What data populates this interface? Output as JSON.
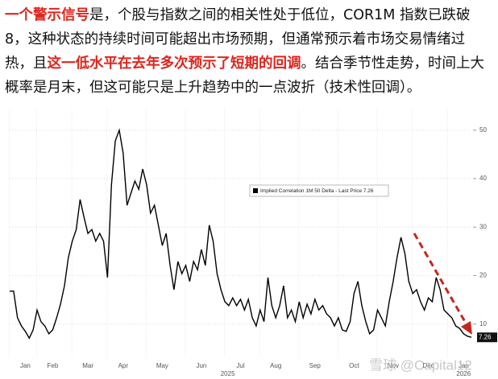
{
  "paragraph": [
    {
      "text": "一个警示信号",
      "red": true
    },
    {
      "text": "是，个股与指数之间的相关性处于低位，COR1M 指数已跌破 8，这种状态的持续时间可能超出市场预期，但通常预示着市场交易情绪过热，且",
      "red": false
    },
    {
      "text": "这一低水平在去年多次预示了短期的回调",
      "red": true
    },
    {
      "text": "。结合季节性走势，时间上大概率是月末，但这可能只是上升趋势中的一点波折（技术性回调）。",
      "red": false
    }
  ],
  "chart_data": {
    "type": "line",
    "categories": [
      null,
      null,
      null,
      null,
      "Jan",
      null,
      null,
      null,
      null,
      null,
      null,
      "Feb",
      null,
      null,
      null,
      null,
      null,
      null,
      null,
      null,
      "Mar",
      null,
      null,
      null,
      null,
      null,
      null,
      null,
      null,
      "Apr",
      null,
      null,
      null,
      null,
      null,
      null,
      null,
      null,
      null,
      "May",
      null,
      null,
      null,
      null,
      null,
      null,
      null,
      null,
      null,
      "Jun",
      null,
      null,
      null,
      null,
      null,
      null,
      null,
      null,
      null,
      "Jul",
      null,
      null,
      null,
      null,
      null,
      null,
      null,
      null,
      "Aug",
      null,
      null,
      null,
      null,
      null,
      null,
      null,
      null,
      null,
      "Sep",
      null,
      null,
      null,
      null,
      null,
      null,
      null,
      null,
      null,
      "Oct",
      null,
      null,
      null,
      null,
      null,
      null,
      null,
      null,
      null,
      "Nov",
      null,
      null,
      null,
      null,
      null,
      null,
      null,
      null,
      "Dec",
      null,
      null,
      null,
      null,
      null,
      null,
      null,
      null,
      "Jan",
      null,
      null
    ],
    "x_groups": [
      "2025",
      "2026"
    ],
    "series": [
      {
        "name": "Implied Correlation 1M 50 Delta - Last Price 7.26",
        "color": "#000000",
        "values": [
          16.8,
          16.8,
          11.3,
          9.6,
          8.5,
          7.1,
          8.8,
          12.9,
          10.5,
          9.6,
          8,
          8.8,
          11.3,
          14.1,
          17.9,
          23.7,
          27.1,
          29.5,
          35.7,
          32,
          28.7,
          29.5,
          27.1,
          28.7,
          27.1,
          19.6,
          38.7,
          47.8,
          50,
          45.3,
          34.5,
          37,
          39.5,
          37.8,
          42,
          38.7,
          32.9,
          34.5,
          30.4,
          26.2,
          28.7,
          22.1,
          17.1,
          22.9,
          20.4,
          22.1,
          18.8,
          22.9,
          21.2,
          25.4,
          22.1,
          30.4,
          27.1,
          20.4,
          17.1,
          14.6,
          13.8,
          15.4,
          13.8,
          15.1,
          12.9,
          15.1,
          11.3,
          9.6,
          12.9,
          10.5,
          19.6,
          13.8,
          11.3,
          13.8,
          17.9,
          11.3,
          12.9,
          10.5,
          14.6,
          11.3,
          14.1,
          12.1,
          15.1,
          12.9,
          13.8,
          12.1,
          11.3,
          9.6,
          11.3,
          8.8,
          8.5,
          10.5,
          16.3,
          18.8,
          13.8,
          10.5,
          8,
          8.8,
          12.9,
          11.3,
          9.6,
          14.6,
          18.8,
          23.7,
          27.9,
          24.6,
          18.8,
          16.3,
          17.1,
          14.6,
          12.9,
          15.4,
          14.6,
          19.6,
          17.1,
          12.9,
          12.1,
          11.3,
          9.6,
          9.1,
          8,
          7.5,
          7.26
        ]
      }
    ],
    "ylim": [
      3,
      53
    ],
    "yticks": [
      10,
      20,
      30,
      40,
      50
    ],
    "grid": true,
    "y_axis_side": "right"
  },
  "watermark": "雪球 @Capital12"
}
